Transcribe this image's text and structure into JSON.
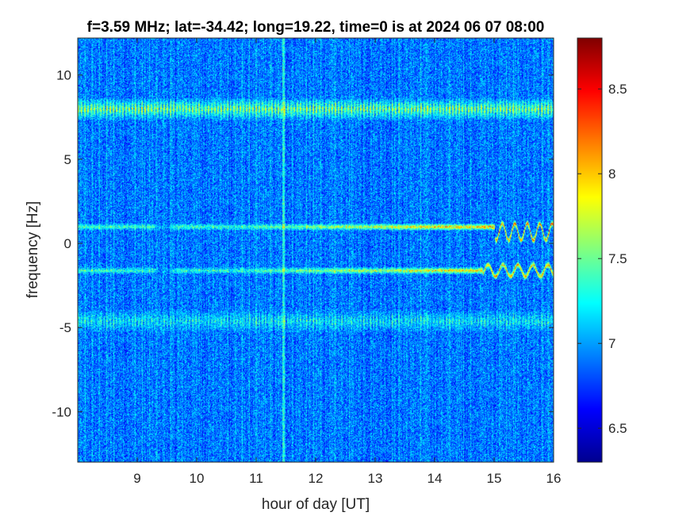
{
  "chart_data": {
    "type": "heatmap",
    "title": "f=3.59 MHz;  lat=-34.42; long=19.22, time=0 is at 2024 06 07 08:00",
    "xlabel": "hour of day [UT]",
    "ylabel": "frequency [Hz]",
    "xlim": [
      8,
      16
    ],
    "ylim": [
      -13,
      12.2
    ],
    "xticks": [
      9,
      10,
      11,
      12,
      13,
      14,
      15,
      16
    ],
    "xtick_labels": [
      "9",
      "10",
      "11",
      "12",
      "13",
      "14",
      "15",
      "16"
    ],
    "yticks": [
      10,
      5,
      0,
      -5,
      -10
    ],
    "ytick_labels": [
      "10",
      "5",
      "0",
      "-5",
      "-10"
    ],
    "colormap": "jet",
    "color_range": [
      6.3,
      8.8
    ],
    "colorbar_ticks": [
      8.5,
      8,
      7.5,
      7,
      6.5
    ],
    "colorbar_tick_labels": [
      "8.5",
      "8",
      "7.5",
      "7",
      "6.5"
    ],
    "background_level": 6.9,
    "features": [
      {
        "frequency_hz": 8.0,
        "x_range": [
          8,
          16
        ],
        "level": 7.7
      },
      {
        "frequency_hz": -4.6,
        "x_range": [
          8,
          16
        ],
        "level": 7.3
      },
      {
        "frequency_hz": 1.0,
        "x_range": [
          8,
          16
        ],
        "level": 8.4
      },
      {
        "frequency_hz": -1.6,
        "x_range": [
          8,
          16
        ],
        "level": 8.3
      }
    ],
    "grid": false
  }
}
